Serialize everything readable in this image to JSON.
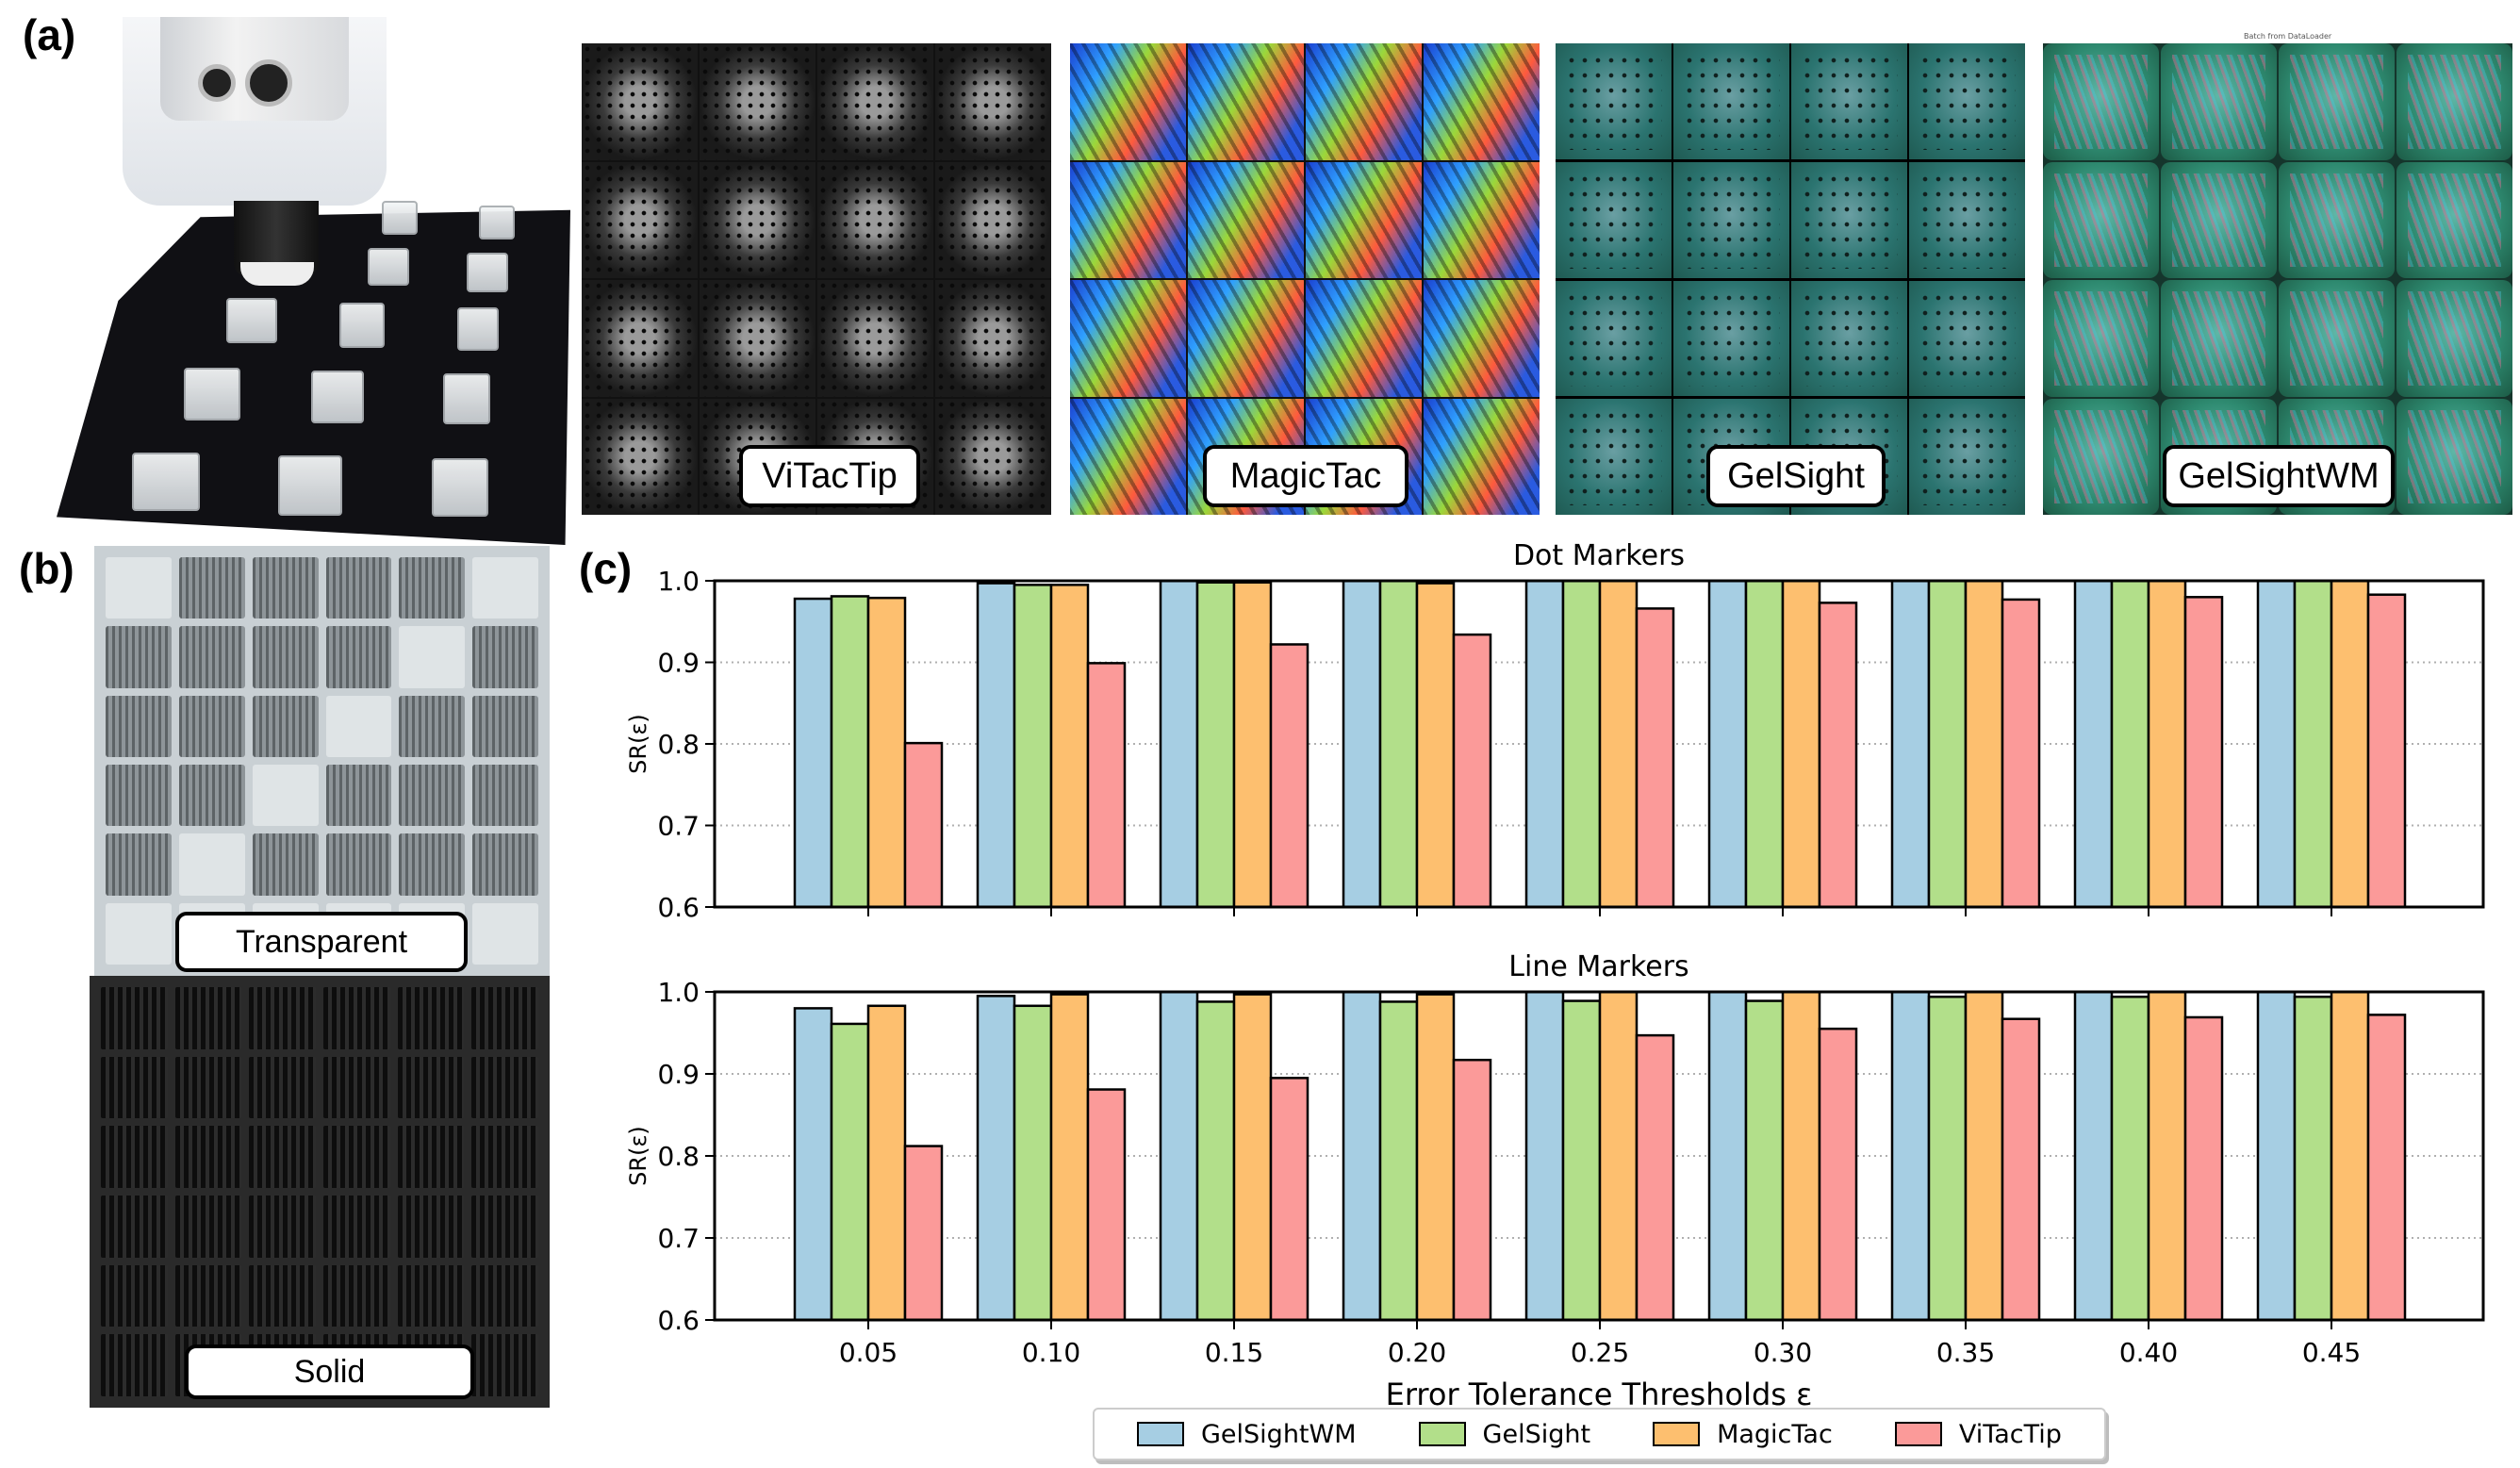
{
  "panels": {
    "a_label": "(a)",
    "b_label": "(b)",
    "c_label": "(c)"
  },
  "tactile_images": [
    {
      "sensor": "ViTacTip",
      "label": "ViTacTip"
    },
    {
      "sensor": "MagicTac",
      "label": "MagicTac"
    },
    {
      "sensor": "GelSight",
      "label": "GelSight"
    },
    {
      "sensor": "GelSightWM",
      "label": "GelSightWM",
      "caption": "Batch from DataLoader"
    }
  ],
  "trays": {
    "transparent_label": "Transparent",
    "solid_label": "Solid"
  },
  "colors": {
    "GelSightWM": "#a6cee3",
    "GelSight": "#b2df8a",
    "MagicTac": "#fdbf6f",
    "ViTacTip": "#fb9a99"
  },
  "chart_data": [
    {
      "type": "bar",
      "title": "Dot Markers",
      "xlabel": "",
      "ylabel": "SR(ε)",
      "ylim": [
        0.6,
        1.0
      ],
      "yticks": [
        "0.6",
        "0.7",
        "0.8",
        "0.9",
        "1.0"
      ],
      "grid": "horizontal dotted",
      "categories": [
        "0.05",
        "0.10",
        "0.15",
        "0.20",
        "0.25",
        "0.30",
        "0.35",
        "0.40",
        "0.45"
      ],
      "series": [
        {
          "name": "GelSightWM",
          "values": [
            0.978,
            0.997,
            1.0,
            1.0,
            1.0,
            1.0,
            1.0,
            1.0,
            1.0
          ]
        },
        {
          "name": "GelSight",
          "values": [
            0.981,
            0.995,
            0.998,
            1.0,
            1.0,
            1.0,
            1.0,
            1.0,
            1.0
          ]
        },
        {
          "name": "MagicTac",
          "values": [
            0.979,
            0.995,
            0.998,
            0.997,
            1.0,
            1.0,
            1.0,
            1.0,
            1.0
          ]
        },
        {
          "name": "ViTacTip",
          "values": [
            0.801,
            0.899,
            0.922,
            0.934,
            0.966,
            0.973,
            0.977,
            0.98,
            0.983
          ]
        }
      ]
    },
    {
      "type": "bar",
      "title": "Line Markers",
      "xlabel": "Error Tolerance Thresholds ε",
      "ylabel": "SR(ε)",
      "ylim": [
        0.6,
        1.0
      ],
      "yticks": [
        "0.6",
        "0.7",
        "0.8",
        "0.9",
        "1.0"
      ],
      "grid": "horizontal dotted",
      "categories": [
        "0.05",
        "0.10",
        "0.15",
        "0.20",
        "0.25",
        "0.30",
        "0.35",
        "0.40",
        "0.45"
      ],
      "series": [
        {
          "name": "GelSightWM",
          "values": [
            0.98,
            0.995,
            1.0,
            1.0,
            1.0,
            1.0,
            1.0,
            1.0,
            1.0
          ]
        },
        {
          "name": "GelSight",
          "values": [
            0.961,
            0.983,
            0.988,
            0.988,
            0.989,
            0.989,
            0.994,
            0.994,
            0.994
          ]
        },
        {
          "name": "MagicTac",
          "values": [
            0.983,
            0.997,
            0.997,
            0.997,
            1.0,
            1.0,
            1.0,
            1.0,
            1.0
          ]
        },
        {
          "name": "ViTacTip",
          "values": [
            0.812,
            0.881,
            0.895,
            0.917,
            0.947,
            0.955,
            0.967,
            0.969,
            0.972
          ]
        }
      ],
      "legend": {
        "placement": "bottom-center",
        "entries": [
          "GelSightWM",
          "GelSight",
          "MagicTac",
          "ViTacTip"
        ]
      }
    }
  ]
}
